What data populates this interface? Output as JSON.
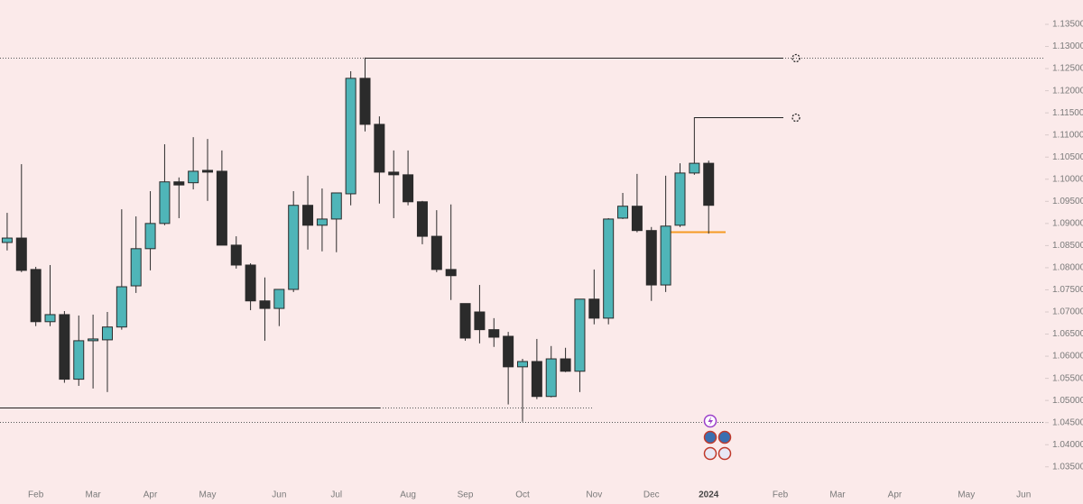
{
  "chart_data": {
    "type": "candlestick",
    "categories": [
      null,
      null,
      "Feb",
      null,
      null,
      null,
      "Mar",
      null,
      null,
      null,
      "Apr",
      null,
      null,
      null,
      "May",
      null,
      null,
      null,
      null,
      "Jun",
      null,
      null,
      null,
      "Jul",
      null,
      null,
      null,
      null,
      "Aug",
      null,
      null,
      null,
      "Sep",
      null,
      null,
      null,
      "Oct",
      null,
      null,
      null,
      null,
      "Nov",
      null,
      null,
      null,
      "Dec",
      null,
      null,
      null,
      "2024",
      null,
      null,
      null,
      null,
      "Feb",
      null,
      null,
      null,
      "Mar",
      null,
      null,
      null,
      "Apr",
      null,
      null,
      null,
      null,
      "May",
      null,
      null,
      null,
      "Jun",
      null
    ],
    "open": [
      1.0857,
      1.0867,
      1.0796,
      1.0678,
      1.0694,
      1.0548,
      1.0635,
      1.0637,
      1.0666,
      1.0759,
      1.0843,
      1.09,
      1.0994,
      1.0992,
      1.102,
      1.1018,
      1.0851,
      1.0806,
      1.0725,
      1.0708,
      1.0751,
      1.0941,
      1.0896,
      1.091,
      1.0967,
      1.1228,
      1.1124,
      1.1016,
      1.101,
      1.0949,
      1.0871,
      1.0796,
      1.0719,
      1.07,
      1.066,
      1.0645,
      1.0576,
      1.0588,
      1.0509,
      1.0594,
      1.0566,
      1.0729,
      1.0686,
      1.0912,
      1.0939,
      1.0884,
      1.0761,
      1.0896,
      1.1014,
      1.1036,
      null,
      null,
      null,
      null,
      null,
      null,
      null,
      null,
      null,
      null,
      null,
      null,
      null,
      null,
      null,
      null,
      null,
      null,
      null,
      null,
      null,
      null,
      null
    ],
    "high": [
      1.0924,
      1.1034,
      1.0802,
      1.0806,
      1.0702,
      1.0692,
      1.0694,
      1.07,
      1.0932,
      1.0916,
      1.0973,
      1.1079,
      1.1004,
      1.1095,
      1.1091,
      1.1065,
      1.0871,
      1.081,
      1.0778,
      1.0751,
      1.0973,
      1.1008,
      1.0979,
      1.0969,
      1.1244,
      1.1275,
      1.1142,
      1.1065,
      1.1065,
      1.0951,
      1.093,
      1.0943,
      1.0719,
      1.0761,
      1.0686,
      1.0655,
      1.0594,
      1.0639,
      1.0623,
      1.0619,
      1.0729,
      1.0796,
      1.0912,
      1.0969,
      1.1012,
      1.0892,
      1.1008,
      1.1036,
      1.114,
      1.1042,
      null,
      null,
      null,
      null,
      null,
      null,
      null,
      null,
      null,
      null,
      null,
      null,
      null,
      null,
      null,
      null,
      null,
      null,
      null,
      null,
      null,
      null,
      null
    ],
    "low": [
      1.0839,
      1.079,
      1.0668,
      1.0668,
      1.054,
      1.0533,
      1.0527,
      1.0519,
      1.066,
      1.0743,
      1.0794,
      1.0896,
      1.0912,
      1.0977,
      1.0951,
      1.0851,
      1.0798,
      1.0704,
      1.0635,
      1.0668,
      1.0745,
      1.0841,
      1.0837,
      1.0835,
      1.0941,
      1.1108,
      1.0945,
      1.0912,
      1.0941,
      1.0853,
      1.079,
      1.0727,
      1.0635,
      1.0629,
      1.0621,
      1.0491,
      1.0452,
      1.0503,
      1.0507,
      1.0564,
      1.0519,
      1.0672,
      1.0672,
      1.091,
      1.088,
      1.0725,
      1.0745,
      1.0892,
      1.101,
      1.0877,
      null,
      null,
      null,
      null,
      null,
      null,
      null,
      null,
      null,
      null,
      null,
      null,
      null,
      null,
      null,
      null,
      null,
      null,
      null,
      null,
      null,
      null,
      null
    ],
    "close": [
      1.0867,
      1.0794,
      1.0678,
      1.0694,
      1.0548,
      1.0635,
      1.0639,
      1.0666,
      1.0757,
      1.0843,
      1.09,
      1.0994,
      1.0987,
      1.1018,
      1.1016,
      1.0851,
      1.0806,
      1.0725,
      1.0708,
      1.0751,
      1.0941,
      1.0896,
      1.091,
      1.0969,
      1.1228,
      1.1124,
      1.1016,
      1.101,
      1.0949,
      1.0871,
      1.0796,
      1.0782,
      1.0641,
      1.066,
      1.0643,
      1.0576,
      1.0588,
      1.0509,
      1.0594,
      1.0566,
      1.0729,
      1.0686,
      1.091,
      1.0939,
      1.0884,
      1.0761,
      1.0894,
      1.1014,
      1.1036,
      1.0941,
      null,
      null,
      null,
      null,
      null,
      null,
      null,
      null,
      null,
      null,
      null,
      null,
      null,
      null,
      null,
      null,
      null,
      null,
      null,
      null,
      null,
      null,
      null
    ],
    "up_color": "#4fb5b8",
    "down_color": "#2b2b2b",
    "ylim": [
      1.0266,
      1.1405
    ],
    "yticks": [
      {
        "value": 1.035,
        "label": "1.03500"
      },
      {
        "value": 1.04,
        "label": "1.04000"
      },
      {
        "value": 1.045,
        "label": "1.04500"
      },
      {
        "value": 1.05,
        "label": "1.05000"
      },
      {
        "value": 1.055,
        "label": "1.05500"
      },
      {
        "value": 1.06,
        "label": "1.06000"
      },
      {
        "value": 1.065,
        "label": "1.06500"
      },
      {
        "value": 1.07,
        "label": "1.07000"
      },
      {
        "value": 1.075,
        "label": "1.07500"
      },
      {
        "value": 1.08,
        "label": "1.08000"
      },
      {
        "value": 1.085,
        "label": "1.08500"
      },
      {
        "value": 1.09,
        "label": "1.09000"
      },
      {
        "value": 1.095,
        "label": "1.09500"
      },
      {
        "value": 1.1,
        "label": "1.10000"
      },
      {
        "value": 1.105,
        "label": "1.10500"
      },
      {
        "value": 1.11,
        "label": "1.11000"
      },
      {
        "value": 1.115,
        "label": "1.11500"
      },
      {
        "value": 1.12,
        "label": "1.12000"
      },
      {
        "value": 1.125,
        "label": "1.12500"
      },
      {
        "value": 1.13,
        "label": "1.13000"
      },
      {
        "value": 1.135,
        "label": "1.13500"
      }
    ],
    "grid": false,
    "levels": [
      {
        "value": 1.1275,
        "style": "dotted",
        "color": "#555555"
      },
      {
        "value": 1.0452,
        "style": "dotted",
        "color": "#555555"
      },
      {
        "value": 1.0484,
        "style": "solid",
        "color": "#222222"
      },
      {
        "value": 1.0484,
        "style": "dotted",
        "color": "#555555"
      },
      {
        "value": 1.1275,
        "style": "solid",
        "color": "#222222"
      },
      {
        "value": 1.114,
        "style": "solid",
        "color": "#222222"
      },
      {
        "value": 1.0882,
        "style": "solid",
        "color": "#f59a23"
      }
    ]
  }
}
